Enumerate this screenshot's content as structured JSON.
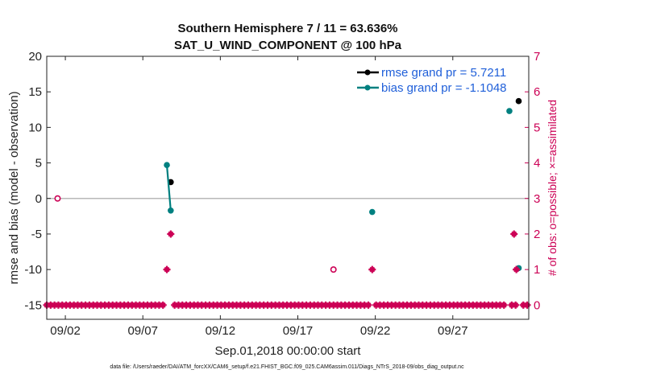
{
  "chart_data": {
    "type": "scatter",
    "title": "Southern Hemisphere 7 / 11 = 63.636%",
    "subtitle": "SAT_U_WIND_COMPONENT @ 100 hPa",
    "xlabel": "Sep.01,2018 00:00:00 start",
    "ylabel_left": "rmse and bias (model - observation)",
    "ylabel_right": "# of obs: o=possible; ×=assimilated",
    "xlim": [
      0.3,
      31.4
    ],
    "ylim_left": [
      -17,
      20
    ],
    "ylim_right": [
      -0.4,
      7
    ],
    "x_ticks": [
      {
        "value": 1.5,
        "label": "09/02"
      },
      {
        "value": 6.5,
        "label": "09/07"
      },
      {
        "value": 11.5,
        "label": "09/12"
      },
      {
        "value": 16.5,
        "label": "09/17"
      },
      {
        "value": 21.5,
        "label": "09/22"
      },
      {
        "value": 26.5,
        "label": "09/27"
      }
    ],
    "y_ticks_left": [
      "-15",
      "-10",
      "-5",
      "0",
      "5",
      "10",
      "15",
      "20"
    ],
    "y_ticks_right": [
      "0",
      "1",
      "2",
      "3",
      "4",
      "5",
      "6",
      "7"
    ],
    "grid": false,
    "legend_position": "top-right",
    "zero_line": true,
    "series": [
      {
        "name": "rmse grand pr = 5.7211",
        "color": "#000000",
        "marker": "filled-circle",
        "axis": "left",
        "points": [
          [
            8.3,
            2.3
          ],
          [
            30.75,
            13.7
          ]
        ]
      },
      {
        "name": "bias grand pr = -1.1048",
        "color": "#008080",
        "marker": "filled-circle",
        "axis": "left",
        "points": [
          [
            8.05,
            4.7
          ],
          [
            8.3,
            -1.7
          ],
          [
            21.3,
            -1.9
          ],
          [
            30.15,
            12.3
          ],
          [
            30.75,
            -9.8
          ]
        ],
        "connected_segments": [
          [
            0,
            1
          ]
        ]
      },
      {
        "name": "obs possible",
        "color": "#cc0055",
        "marker": "open-circle",
        "axis": "right",
        "points": [
          [
            1.0,
            3
          ],
          [
            18.8,
            1
          ]
        ]
      },
      {
        "name": "obs assimilated",
        "color": "#cc0055",
        "marker": "star",
        "axis": "right",
        "points": [
          [
            8.05,
            1
          ],
          [
            8.3,
            2
          ],
          [
            21.3,
            1
          ],
          [
            30.45,
            2
          ],
          [
            30.6,
            1
          ]
        ]
      }
    ],
    "zero_count_markers": {
      "color": "#cc0055",
      "axis": "right",
      "value": 0,
      "x_start": 0.3,
      "x_end": 31.4,
      "spacing": 0.25,
      "gaps": [
        [
          8.05,
          8.5
        ],
        [
          21.3,
          21.5
        ],
        [
          30.0,
          30.2
        ],
        [
          30.7,
          30.9
        ]
      ]
    },
    "footnote": "data file: /Users/raeder/DAI/ATM_forcXX/CAM6_setup/f.e21.FHIST_BGC.f09_025.CAM6assim.011/Diags_NTrS_2018-09/obs_diag_output.nc"
  }
}
